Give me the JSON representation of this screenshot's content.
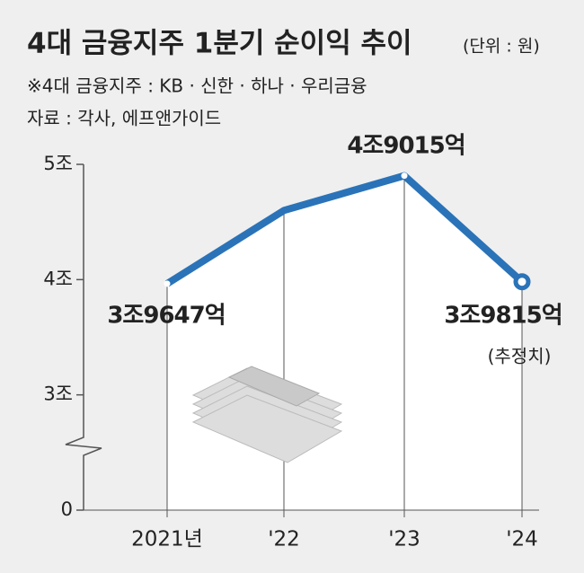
{
  "chart_data": {
    "type": "line",
    "title": "4대 금융지주 1분기 순이익 추이",
    "subtitle": "(단위 : 원)",
    "notes": [
      "※4대 금융지주 : KB · 신한 · 하나 · 우리금융",
      "자료 : 각사, 에프앤가이드"
    ],
    "categories": [
      "2021년",
      "'22",
      "'23",
      "'24"
    ],
    "values": [
      3.9647,
      4.6,
      4.9015,
      3.9815
    ],
    "value_labels": [
      "3조9647억",
      null,
      "4조9015억",
      "3조9815억"
    ],
    "annotations": [
      "(추정치)"
    ],
    "color": "#2a73b8",
    "ylim": [
      0,
      5
    ],
    "yticks": [
      0,
      {
        "value": 3,
        "label": "3조"
      },
      {
        "value": 4,
        "label": "4조"
      },
      {
        "value": 5,
        "label": "5조"
      }
    ],
    "axis_break": true
  }
}
